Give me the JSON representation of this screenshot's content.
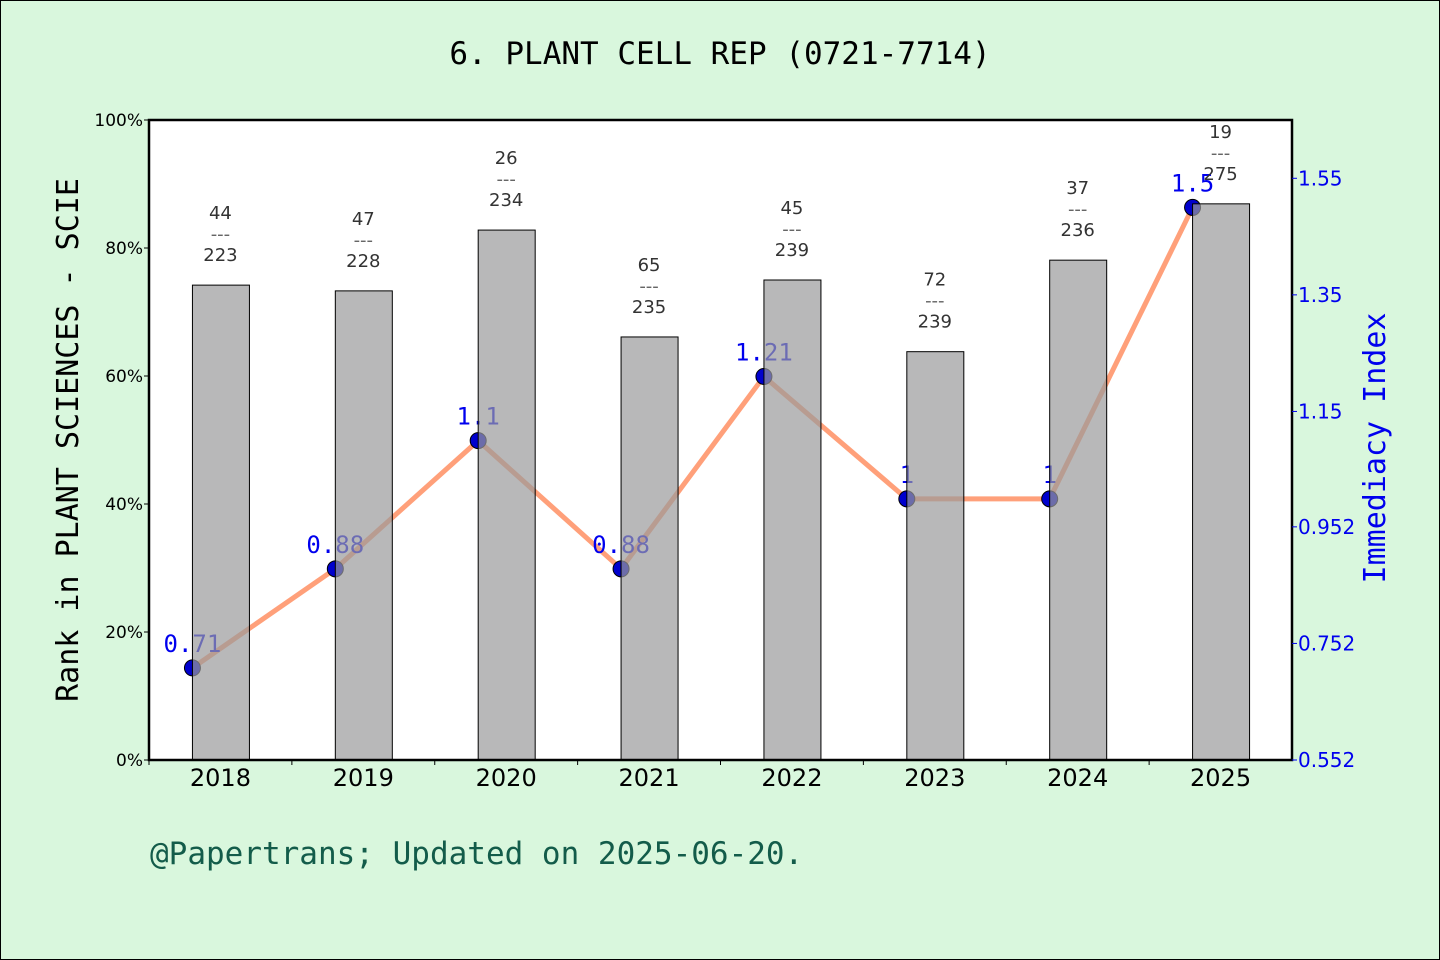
{
  "chart_data": {
    "type": "bar+line",
    "title": "6. PLANT CELL REP (0721-7714)",
    "categories": [
      "2018",
      "2019",
      "2020",
      "2021",
      "2022",
      "2023",
      "2024",
      "2025"
    ],
    "ylabel_left": "Rank in PLANT SCIENCES - SCIE",
    "ylabel_right": "Immediacy Index",
    "ylim_left": [
      0,
      100
    ],
    "yticks_left": [
      "0%",
      "20%",
      "40%",
      "60%",
      "80%",
      "100%"
    ],
    "ylim_right": [
      0.552,
      1.65
    ],
    "yticks_right": [
      "0.552",
      "0.752",
      "0.952",
      "1.15",
      "1.35",
      "1.55"
    ],
    "bar_series": {
      "values_percent": [
        74.2,
        73.3,
        82.8,
        66.1,
        75.0,
        63.8,
        78.1,
        86.9
      ],
      "rank": [
        "44",
        "47",
        "26",
        "65",
        "45",
        "72",
        "37",
        "19"
      ],
      "total": [
        "223",
        "228",
        "234",
        "235",
        "239",
        "239",
        "236",
        "275"
      ],
      "color": "#9a9a9b"
    },
    "line_series": {
      "values": [
        0.71,
        0.88,
        1.1,
        0.88,
        1.21,
        1.0,
        1.0,
        1.5
      ],
      "labels": [
        "0.71",
        "0.88",
        "1.1",
        "0.88",
        "1.21",
        "1",
        "1",
        "1.5"
      ],
      "line_color": "#ffa07a",
      "marker_color": "#0000cd"
    },
    "grid": false
  },
  "footer": "@Papertrans; Updated on 2025-06-20."
}
